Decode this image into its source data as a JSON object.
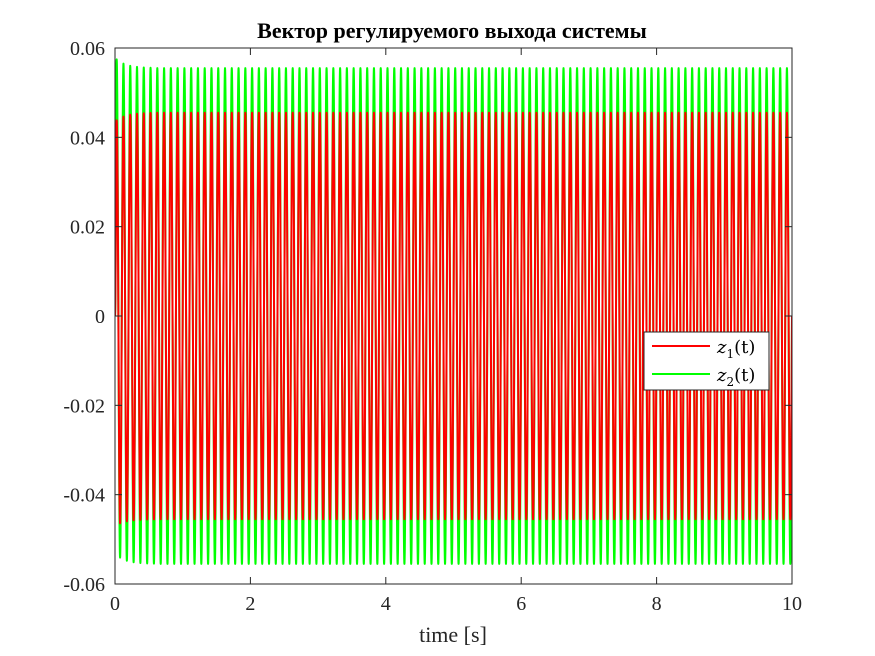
{
  "chart_data": {
    "type": "line",
    "title": "Вектор регулируемого выхода системы",
    "xlabel": "time [s]",
    "ylabel": "",
    "xlim": [
      0,
      10
    ],
    "ylim": [
      -0.06,
      0.06
    ],
    "xticks": [
      "0",
      "2",
      "4",
      "6",
      "8",
      "10"
    ],
    "yticks": [
      "0.06",
      "0.04",
      "0.02",
      "0",
      "-0.02",
      "-0.04",
      "-0.06"
    ],
    "grid": false,
    "legend_position": "right",
    "series": [
      {
        "name_base": "z",
        "name_sub": "1",
        "name_arg": "(t)",
        "color": "#ff0000",
        "amplitude": 0.0455,
        "first_peak": 0.0435,
        "first_trough": -0.047,
        "period": 0.1,
        "steady_from": 0.6
      },
      {
        "name_base": "z",
        "name_sub": "2",
        "name_arg": "(t)",
        "color": "#00ff00",
        "amplitude": 0.0555,
        "first_peak": 0.0578,
        "first_trough": -0.0532,
        "period": 0.1,
        "steady_from": 0.6
      }
    ]
  }
}
